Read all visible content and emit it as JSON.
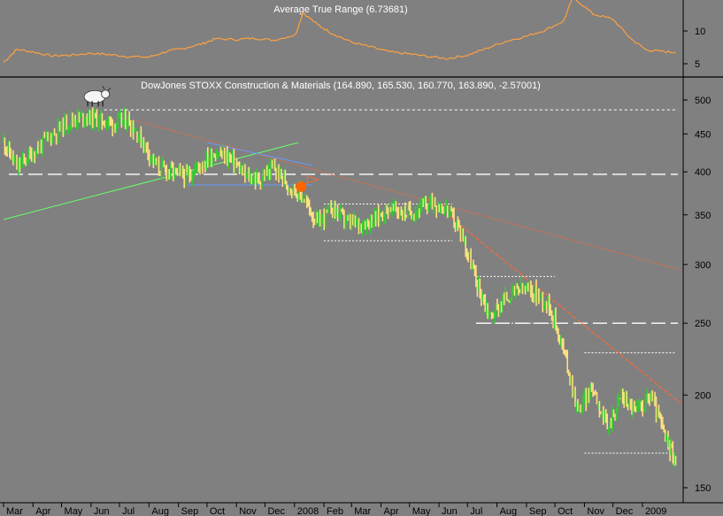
{
  "chart_data": [
    {
      "type": "line",
      "title": "Average True Range (6.73681)",
      "indicator_value": 6.73681,
      "yticks": [
        5,
        10
      ],
      "ylim": [
        3.5,
        15
      ],
      "colors": {
        "line": "#ffa040"
      },
      "series": [
        {
          "x": [
            "2007-03-01",
            "2007-03-15",
            "2007-04-01",
            "2007-04-20",
            "2007-05-10",
            "2007-06-01",
            "2007-06-20",
            "2007-07-10",
            "2007-08-01",
            "2007-08-20",
            "2007-09-05",
            "2007-09-25",
            "2007-10-10",
            "2007-11-01",
            "2007-11-20",
            "2007-12-10",
            "2008-01-02",
            "2008-01-10",
            "2008-01-25",
            "2008-02-10",
            "2008-03-01",
            "2008-03-20",
            "2008-04-10",
            "2008-05-01",
            "2008-05-20",
            "2008-06-10",
            "2008-07-01",
            "2008-07-20",
            "2008-08-10",
            "2008-09-01",
            "2008-09-20",
            "2008-10-10",
            "2008-10-20",
            "2008-11-10",
            "2008-12-01",
            "2008-12-20",
            "2009-01-05",
            "2009-01-20",
            "2009-02-05"
          ],
          "values": [
            5.2,
            7.2,
            6.8,
            6.2,
            6.3,
            6.6,
            6.4,
            6.1,
            6.0,
            6.9,
            7.3,
            8.0,
            8.8,
            8.7,
            8.9,
            8.6,
            9.4,
            12.8,
            11.0,
            9.6,
            8.3,
            7.6,
            6.8,
            6.5,
            6.1,
            5.8,
            6.3,
            7.3,
            8.4,
            9.2,
            10.1,
            11.5,
            15.2,
            12.6,
            11.8,
            8.8,
            7.1,
            6.9,
            6.74
          ]
        }
      ]
    },
    {
      "type": "line",
      "title": "DowJones STOXX Construction & Materials (164.890, 165.530, 160.770, 163.890, -2.57001)",
      "ohlc_last": {
        "open": 164.89,
        "high": 165.53,
        "low": 160.77,
        "close": 163.89,
        "change": -2.57001
      },
      "yscale": "log",
      "yticks": [
        150,
        200,
        250,
        300,
        350,
        400,
        450,
        500
      ],
      "ylim": [
        147,
        540
      ],
      "xticks": [
        "Mar",
        "Apr",
        "May",
        "Jun",
        "Jul",
        "Aug",
        "Sep",
        "Oct",
        "Nov",
        "Dec",
        "2008",
        "Feb",
        "Mar",
        "Apr",
        "May",
        "Jun",
        "Jul",
        "Aug",
        "Sep",
        "Oct",
        "Nov",
        "Dec",
        "2009"
      ],
      "colors": {
        "up": "#33cc33",
        "down": "#ffe080",
        "trend": "#ff6633",
        "support": "#ffffff",
        "uptrend": "#66ff66",
        "channel": "#6699ff",
        "marker": "#ff6600"
      },
      "series": [
        {
          "name": "",
          "x": [
            "2007-03-01",
            "2007-03-15",
            "2007-04-01",
            "2007-04-20",
            "2007-05-10",
            "2007-05-25",
            "2007-06-10",
            "2007-06-25",
            "2007-07-10",
            "2007-07-25",
            "2007-08-10",
            "2007-08-25",
            "2007-09-10",
            "2007-09-25",
            "2007-10-10",
            "2007-10-25",
            "2007-11-10",
            "2007-11-25",
            "2007-12-10",
            "2007-12-25",
            "2008-01-10",
            "2008-01-25",
            "2008-02-10",
            "2008-02-25",
            "2008-03-10",
            "2008-03-25",
            "2008-04-10",
            "2008-04-25",
            "2008-05-10",
            "2008-05-25",
            "2008-06-10",
            "2008-06-25",
            "2008-07-10",
            "2008-07-25",
            "2008-08-10",
            "2008-08-25",
            "2008-09-10",
            "2008-09-25",
            "2008-10-10",
            "2008-10-25",
            "2008-11-10",
            "2008-11-25",
            "2008-12-10",
            "2008-12-25",
            "2009-01-10",
            "2009-01-25",
            "2009-02-05"
          ],
          "values": [
            440,
            405,
            425,
            448,
            470,
            475,
            470,
            465,
            470,
            440,
            405,
            400,
            395,
            410,
            425,
            418,
            395,
            390,
            405,
            385,
            370,
            340,
            358,
            342,
            340,
            345,
            358,
            352,
            355,
            365,
            355,
            330,
            285,
            255,
            270,
            278,
            275,
            265,
            230,
            190,
            205,
            180,
            200,
            190,
            200,
            175,
            163.89
          ]
        }
      ],
      "annotations": {
        "support_levels": [
          485,
          397,
          250
        ],
        "range_boxes": [
          {
            "from": "2008-02-01",
            "to": "2008-06-15",
            "top": 362,
            "bottom": 323
          },
          {
            "from": "2008-07-10",
            "to": "2008-10-01",
            "top": 289,
            "bottom": 250
          },
          {
            "from": "2008-11-01",
            "to": "2009-02-05",
            "top": 228,
            "bottom": 167
          }
        ],
        "downtrend_long": {
          "from": [
            "2007-07-15",
            470
          ],
          "to": [
            "2009-02-10",
            295
          ]
        },
        "downtrend_short": {
          "from": [
            "2008-05-20",
            368
          ],
          "to": [
            "2009-02-10",
            195
          ]
        },
        "uptrend": {
          "from": [
            "2007-03-01",
            345
          ],
          "to": [
            "2008-01-05",
            438
          ]
        },
        "triangle_channel": {
          "top_from": [
            "2007-10-01",
            438
          ],
          "top_to": [
            "2008-01-20",
            408
          ],
          "bottom": 384,
          "from": "2007-09-10",
          "to": "2008-01-20"
        },
        "sell_signal": {
          "x": "2008-01-08",
          "y": 382
        },
        "bull_icon": {
          "x": "2007-06-05",
          "y": 505,
          "label": "bull-icon"
        }
      }
    }
  ]
}
